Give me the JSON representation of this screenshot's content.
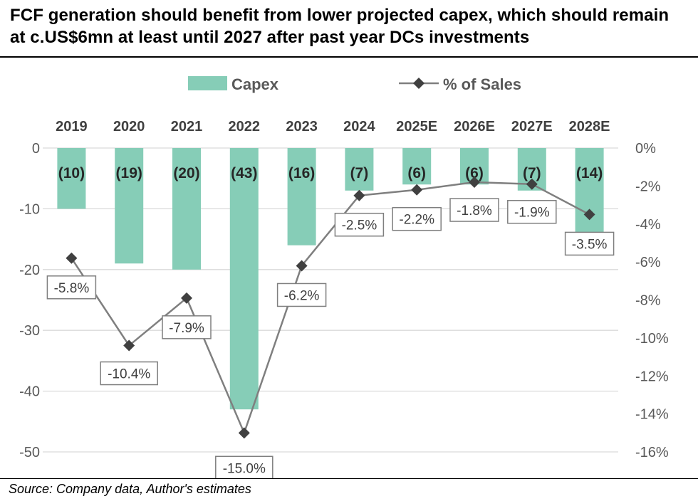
{
  "title": "FCF generation should benefit from lower projected capex, which should remain at c.US$6mn at least until 2027 after past year DCs investments",
  "source": "Source: Company data, Author's estimates",
  "colors": {
    "bar": "#86CDB7",
    "line": "#7F7F7F",
    "marker": "#404040",
    "grid": "#D9D9D9",
    "text": "#595959"
  },
  "chart_data": {
    "type": "bar",
    "categories": [
      "2019",
      "2020",
      "2021",
      "2022",
      "2023",
      "2024",
      "2025E",
      "2026E",
      "2027E",
      "2028E"
    ],
    "series": [
      {
        "name": "Capex",
        "type": "bar",
        "axis": "left",
        "values": [
          -10,
          -19,
          -20,
          -43,
          -16,
          -7,
          -6,
          -6,
          -7,
          -14
        ],
        "labels": [
          "(10)",
          "(19)",
          "(20)",
          "(43)",
          "(16)",
          "(7)",
          "(6)",
          "(6)",
          "(7)",
          "(14)"
        ]
      },
      {
        "name": "% of Sales",
        "type": "line",
        "axis": "right",
        "values": [
          -5.8,
          -10.4,
          -7.9,
          -15.0,
          -6.2,
          -2.5,
          -2.2,
          -1.8,
          -1.9,
          -3.5
        ],
        "labels": [
          "-5.8%",
          "-10.4%",
          "-7.9%",
          "-15.0%",
          "-6.2%",
          "-2.5%",
          "-2.2%",
          "-1.8%",
          "-1.9%",
          "-3.5%"
        ]
      }
    ],
    "y_left": {
      "ylim": [
        -50,
        0
      ],
      "ticks": [
        0,
        -10,
        -20,
        -30,
        -40,
        -50
      ],
      "tick_labels": [
        "0",
        "-10",
        "-20",
        "-30",
        "-40",
        "-50"
      ]
    },
    "y_right": {
      "ylim": [
        -16,
        0
      ],
      "ticks": [
        0,
        -2,
        -4,
        -6,
        -8,
        -10,
        -12,
        -14,
        -16
      ],
      "tick_labels": [
        "0%",
        "-2%",
        "-4%",
        "-6%",
        "-8%",
        "-10%",
        "-12%",
        "-14%",
        "-16%"
      ]
    },
    "legend": {
      "placement": "top-center",
      "entries": [
        "Capex",
        "% of Sales"
      ]
    },
    "grid": true,
    "category_axis_position": "top"
  }
}
